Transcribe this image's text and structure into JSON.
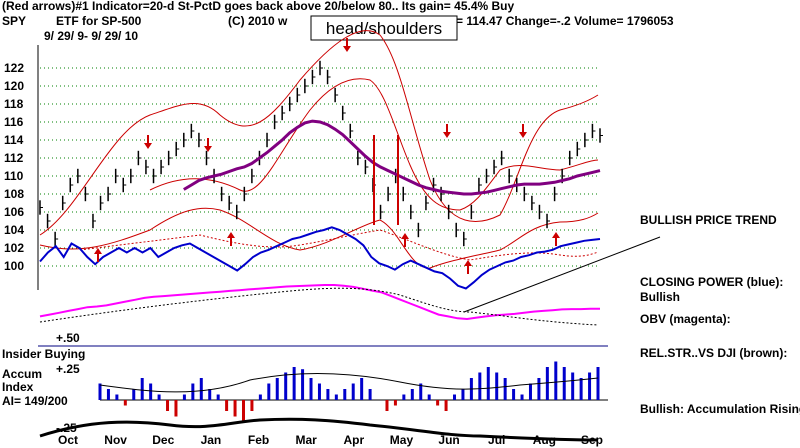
{
  "header": {
    "line1": "(Red arrows)#1 Indicator=20-d St-PctD goes back above 20/below 80..  Its gain= 45.4% Buy",
    "symbol": "SPY",
    "etf": "ETF for SP-500",
    "copyright": "(C) 2010 w",
    "quote": "= 114.47  Change=-.2 Volume= 1796053",
    "dates": "9/ 29/ 9-  9/ 29/ 10"
  },
  "annotation_box": "head/shoulders",
  "side_labels": {
    "bullish_trend": "BULLISH PRICE TREND",
    "closing_power": "CLOSING POWER (blue):",
    "closing_power_val": "Bullish",
    "obv": "OBV (magenta):",
    "relstr": "REL.STR..VS DJI (brown):",
    "accum_rising": "Bullish: Accumulation Rising"
  },
  "lower": {
    "insider": "Insider Buying",
    "plus50": "+.50",
    "plus25": "+.25",
    "minus25": "-.25",
    "accum1": "Accum",
    "accum2": "Index",
    "ai": "AI= 149/200"
  },
  "colors": {
    "band": "#cc0000",
    "ma": "#800080",
    "closing_power": "#0000cc",
    "obv": "#ff00ff",
    "price": "#000000",
    "grid": "#008000",
    "accum_pos": "#0000cc",
    "accum_neg": "#cc0000"
  },
  "chart_data": {
    "type": "line",
    "y_ticks": [
      100,
      102,
      104,
      106,
      108,
      110,
      112,
      114,
      116,
      118,
      120,
      122
    ],
    "ylim": [
      99,
      123
    ],
    "x_labels": [
      "Oct",
      "Nov",
      "Dec",
      "Jan",
      "Feb",
      "Mar",
      "Apr",
      "May",
      "Jun",
      "Jul",
      "Aug",
      "Sep"
    ],
    "grid": true,
    "series": [
      {
        "role": "price",
        "values": [
          106.5,
          105,
          103,
          107,
          109,
          110,
          108,
          105,
          107,
          108,
          110,
          109,
          110,
          112,
          111,
          110,
          111,
          112,
          113,
          114,
          115,
          114,
          112,
          110,
          108,
          107,
          106,
          108,
          110,
          112,
          114,
          116,
          117,
          118,
          119,
          120,
          121,
          122,
          121,
          119,
          117,
          115,
          112,
          111,
          109,
          106,
          108,
          110,
          108,
          106,
          104,
          107,
          109,
          108,
          106,
          104,
          103,
          106,
          109,
          110,
          111,
          112,
          110,
          109,
          108,
          107,
          106,
          105,
          108,
          110,
          112,
          113,
          114,
          115,
          114.5
        ]
      },
      {
        "role": "ma",
        "values": [
          null,
          null,
          null,
          null,
          null,
          null,
          null,
          null,
          null,
          null,
          null,
          null,
          null,
          null,
          null,
          null,
          null,
          null,
          null,
          108.5,
          109,
          109.5,
          109.8,
          110,
          110.2,
          110.5,
          110.8,
          111,
          111.4,
          112,
          112.6,
          113.3,
          114,
          114.8,
          115.4,
          115.9,
          116.1,
          116,
          115.7,
          115.2,
          114.6,
          113.8,
          113,
          112.2,
          111.5,
          111,
          110.6,
          110.2,
          109.8,
          109.4,
          109,
          108.7,
          108.5,
          108.3,
          108.2,
          108.1,
          108,
          108,
          108.1,
          108.2,
          108.4,
          108.6,
          108.8,
          109,
          109.1,
          109.1,
          109.1,
          109.2,
          109.3,
          109.5,
          109.7,
          110,
          110.2,
          110.4,
          110.6
        ]
      },
      {
        "role": "closing_power",
        "values": [
          100.5,
          101.5,
          102.2,
          101,
          102.5,
          102,
          101,
          100.2,
          101,
          101.5,
          102,
          101.5,
          102,
          101.5,
          102,
          101,
          101.5,
          102,
          102.3,
          102.5,
          102,
          101.5,
          101,
          100.5,
          100,
          99.5,
          100.2,
          101,
          101.5,
          101.8,
          102.2,
          102.6,
          103,
          103.2,
          103.5,
          103.8,
          104,
          104.3,
          104,
          103.5,
          103,
          102.3,
          101,
          100.3,
          100,
          99.6,
          100.2,
          100.6,
          100.2,
          99.8,
          99.4,
          99.2,
          98.6,
          97.8,
          97.5,
          98.2,
          99,
          99.6,
          100,
          100.4,
          100.6,
          101,
          101.2,
          101.5,
          101.6,
          101.8,
          102.2,
          102.4,
          102.6,
          102.8,
          102.9,
          103
        ]
      },
      {
        "role": "obv",
        "values": [
          0.15,
          0.2,
          0.25,
          0.3,
          0.35,
          0.4,
          0.42,
          0.45,
          0.5,
          0.55,
          0.6,
          0.65,
          0.68,
          0.7,
          0.72,
          0.74,
          0.76,
          0.78,
          0.8,
          0.82,
          0.84,
          0.86,
          0.88,
          0.9,
          0.92,
          0.94,
          0.96,
          0.97,
          0.98,
          0.99,
          1,
          1,
          0.98,
          0.95,
          0.9,
          0.85,
          0.8,
          0.7,
          0.6,
          0.5,
          0.4,
          0.3,
          0.2,
          0.15,
          0.1,
          0.08,
          0.12,
          0.15,
          0.18,
          0.2,
          0.22,
          0.25,
          0.28,
          0.3,
          0.32,
          0.34,
          0.35,
          0.35,
          0.36,
          0.36
        ]
      }
    ]
  },
  "accum_data": {
    "values": [
      0.15,
      0.1,
      0.05,
      -0.05,
      0.1,
      0.2,
      0.15,
      0.05,
      -0.1,
      -0.15,
      0.05,
      0.15,
      0.2,
      0.1,
      0.05,
      -0.1,
      -0.15,
      -0.2,
      -0.1,
      0.05,
      0.15,
      0.2,
      0.25,
      0.3,
      0.28,
      0.2,
      0.15,
      0.1,
      0.05,
      0.1,
      0.15,
      0.2,
      0.1,
      0.0,
      -0.1,
      -0.05,
      0.05,
      0.1,
      0.15,
      0.05,
      -0.05,
      -0.1,
      0.05,
      0.1,
      0.2,
      0.25,
      0.3,
      0.25,
      0.2,
      0.1,
      0.05,
      0.15,
      0.2,
      0.3,
      0.35,
      0.3,
      0.25,
      0.2,
      0.25,
      0.3
    ]
  }
}
